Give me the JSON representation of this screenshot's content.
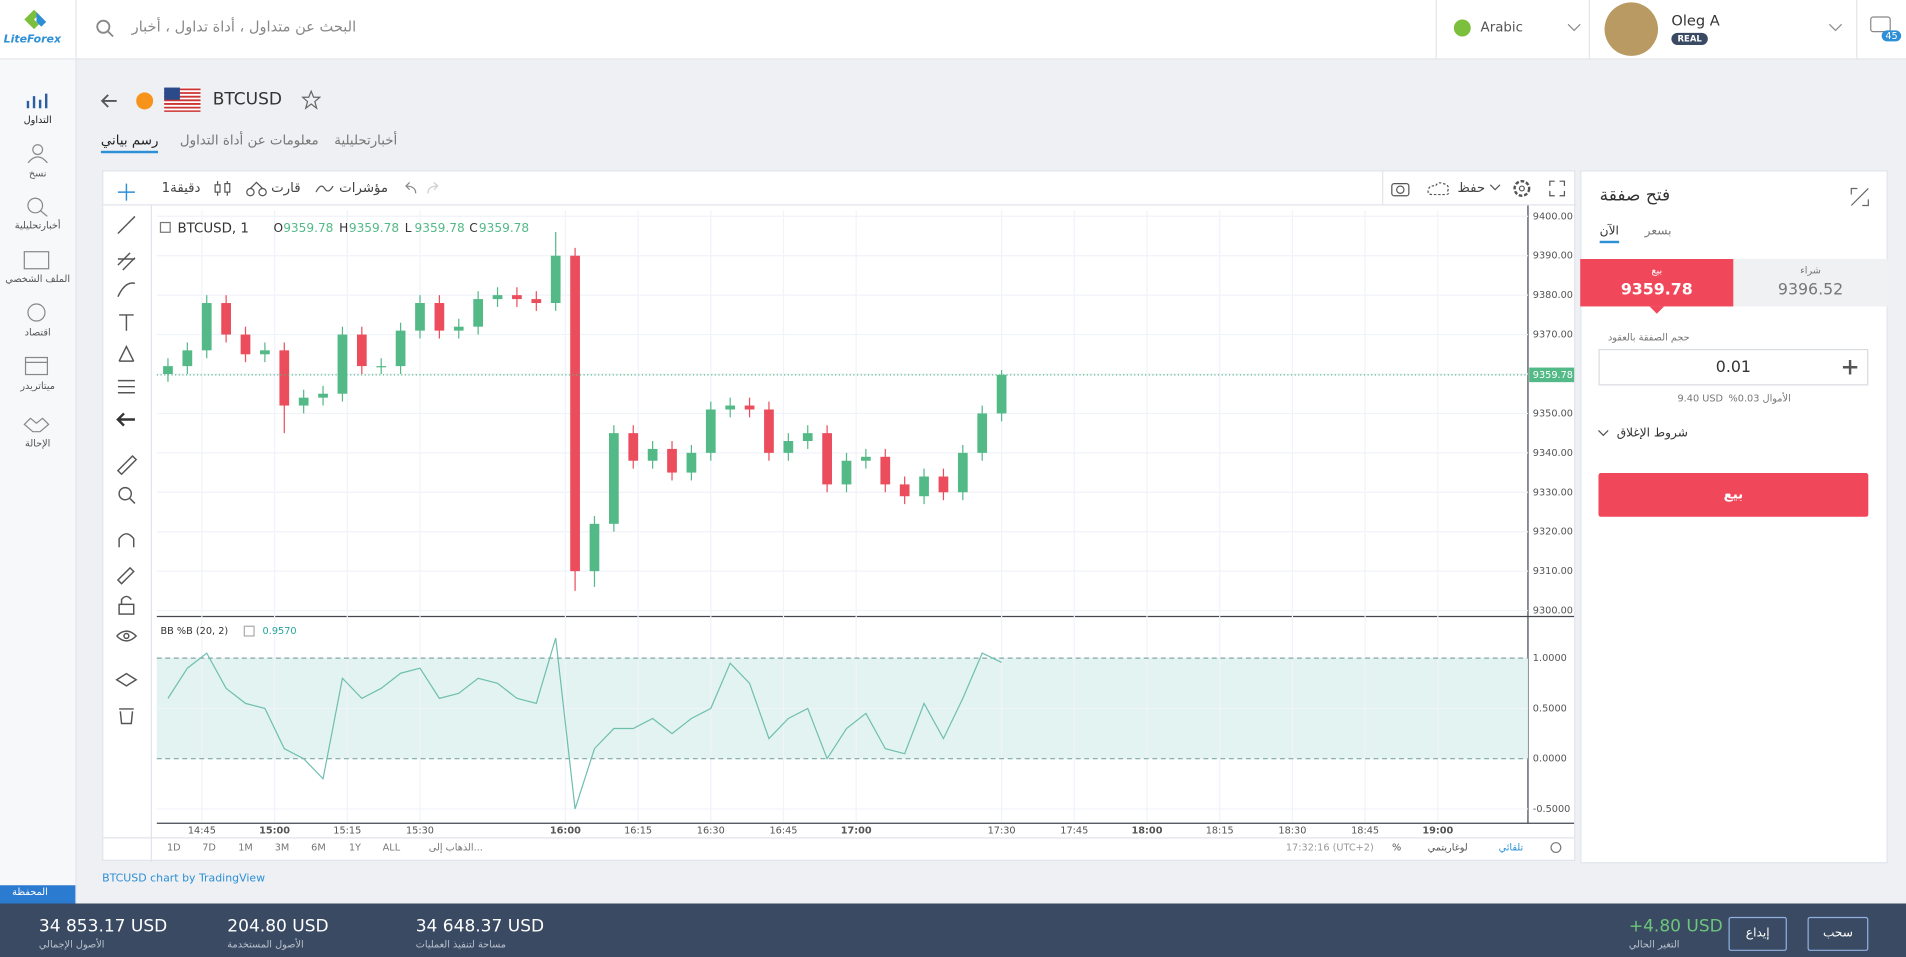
{
  "header": {
    "logo": "LiteForex",
    "search_placeholder": "البحث عن متداول ، أداة تداول ، أخبار",
    "language": "Arabic",
    "user_name": "Oleg A",
    "account_type": "REAL",
    "notifications": "45"
  },
  "sidebar": {
    "items": [
      "التداول",
      "نسخ",
      "أخبارتحليلية",
      "الملف الشخصي",
      "اقتصاد",
      "ميتاتريدر",
      "الإحالة"
    ],
    "wallet": "المحفظة"
  },
  "instrument": {
    "symbol": "BTCUSD",
    "tabs": [
      "رسم بياني",
      "معلومات عن أداة التداول",
      "أخبارتحليلية"
    ]
  },
  "chart_toolbar": {
    "interval": "دقيقة1",
    "chart": "قارت",
    "indicators": "مؤشرات",
    "save": "حفظ"
  },
  "chart_footer": {
    "ranges": [
      "1D",
      "7D",
      "1M",
      "3M",
      "6M",
      "1Y",
      "ALL",
      "...الذهاب إلى"
    ],
    "time": "17:32:16 (UTC+2)",
    "percent": "%",
    "log": "لوغاريتمي",
    "auto": "تلقائي"
  },
  "credit": "BTCUSD chart by TradingView",
  "chart_data": [
    {
      "type": "candlestick",
      "title": "BTCUSD, 1",
      "legend": [
        {
          "label": "O",
          "value": 9359.78
        },
        {
          "label": "H",
          "value": 9359.78
        },
        {
          "label": "L",
          "value": 9359.78
        },
        {
          "label": "C",
          "value": 9359.78
        }
      ],
      "x": [
        878,
        882,
        886,
        890,
        894,
        898,
        902,
        906,
        910,
        914,
        918,
        922,
        926,
        930,
        934,
        938,
        942,
        946,
        950,
        954,
        958,
        962,
        966,
        970,
        974,
        978,
        982,
        986,
        990,
        994,
        998,
        1002,
        1006,
        1010,
        1014,
        1018,
        1022,
        1026,
        1030,
        1034,
        1038,
        1042,
        1046,
        1050
      ],
      "open": [
        9360,
        9362,
        9366,
        9378,
        9370,
        9365,
        9366,
        9352,
        9354,
        9355,
        9370,
        9362,
        9362,
        9371,
        9378,
        9371,
        9372,
        9379,
        9380,
        9379,
        9378,
        9390,
        9310,
        9322,
        9345,
        9338,
        9341,
        9335,
        9340,
        9351,
        9352,
        9351,
        9340,
        9343,
        9345,
        9332,
        9338,
        9339,
        9332,
        9329,
        9334,
        9330,
        9340,
        9350
      ],
      "high": [
        9364,
        9368,
        9380,
        9380,
        9372,
        9368,
        9368,
        9356,
        9357,
        9372,
        9372,
        9364,
        9373,
        9380,
        9380,
        9374,
        9381,
        9382,
        9382,
        9381,
        9396,
        9392,
        9324,
        9347,
        9347,
        9343,
        9343,
        9342,
        9353,
        9354,
        9354,
        9353,
        9345,
        9347,
        9347,
        9340,
        9341,
        9341,
        9334,
        9336,
        9336,
        9342,
        9352,
        9361
      ],
      "low": [
        9358,
        9360,
        9364,
        9368,
        9363,
        9363,
        9345,
        9350,
        9352,
        9353,
        9360,
        9360,
        9360,
        9369,
        9369,
        9369,
        9370,
        9377,
        9377,
        9376,
        9376,
        9305,
        9306,
        9320,
        9336,
        9336,
        9333,
        9333,
        9338,
        9349,
        9349,
        9338,
        9338,
        9341,
        9330,
        9330,
        9336,
        9330,
        9327,
        9327,
        9328,
        9328,
        9338,
        9348
      ],
      "close": [
        9362,
        9366,
        9378,
        9370,
        9365,
        9366,
        9352,
        9354,
        9355,
        9370,
        9362,
        9362,
        9371,
        9378,
        9371,
        9372,
        9379,
        9380,
        9379,
        9378,
        9390,
        9310,
        9322,
        9345,
        9338,
        9341,
        9335,
        9340,
        9351,
        9352,
        9351,
        9340,
        9343,
        9345,
        9332,
        9338,
        9339,
        9332,
        9329,
        9334,
        9330,
        9340,
        9350,
        9359.78
      ],
      "up_color": "#53b987",
      "down_color": "#eb4d5c",
      "last_price": 9359.78,
      "xlim": [
        875.7,
        1158.6
      ],
      "xticks": [
        {
          "value": 885,
          "label": "14:45"
        },
        {
          "value": 900,
          "label": "15:00"
        },
        {
          "value": 915,
          "label": "15:15"
        },
        {
          "value": 930,
          "label": "15:30"
        },
        {
          "value": 960,
          "label": "16:00"
        },
        {
          "value": 975,
          "label": "16:15"
        },
        {
          "value": 990,
          "label": "16:30"
        },
        {
          "value": 1005,
          "label": "16:45"
        },
        {
          "value": 1020,
          "label": "17:00"
        },
        {
          "value": 1050,
          "label": "17:30"
        },
        {
          "value": 1065,
          "label": "17:45"
        },
        {
          "value": 1080,
          "label": "18:00"
        },
        {
          "value": 1095,
          "label": "18:15"
        },
        {
          "value": 1110,
          "label": "18:30"
        },
        {
          "value": 1125,
          "label": "18:45"
        },
        {
          "value": 1140,
          "label": "19:00"
        }
      ],
      "ylim": [
        9298.8,
        9401.5
      ],
      "yticks": [
        {
          "value": 9300,
          "label": "9300.00"
        },
        {
          "value": 9310,
          "label": "9310.00"
        },
        {
          "value": 9320,
          "label": "9320.00"
        },
        {
          "value": 9330,
          "label": "9330.00"
        },
        {
          "value": 9340,
          "label": "9340.00"
        },
        {
          "value": 9350,
          "label": "9350.00"
        },
        {
          "value": 9360,
          "label": "9360.00"
        },
        {
          "value": 9370,
          "label": "9370.00"
        },
        {
          "value": 9380,
          "label": "9380.00"
        },
        {
          "value": 9390,
          "label": "9390.00"
        },
        {
          "value": 9400,
          "label": "9400.00"
        }
      ],
      "grid": true
    },
    {
      "type": "line",
      "title": "BB %B (20, 2)",
      "value_label": {
        "value": 0.957,
        "label": "0.9570"
      },
      "color": "#6fbfb0",
      "x": [
        878,
        882,
        886,
        890,
        894,
        898,
        902,
        906,
        910,
        914,
        918,
        922,
        926,
        930,
        934,
        938,
        942,
        946,
        950,
        954,
        958,
        962,
        966,
        970,
        974,
        978,
        982,
        986,
        990,
        994,
        998,
        1002,
        1006,
        1010,
        1014,
        1018,
        1022,
        1026,
        1030,
        1034,
        1038,
        1042,
        1046,
        1050
      ],
      "values": [
        0.6,
        0.9,
        1.05,
        0.7,
        0.55,
        0.5,
        0.1,
        0.0,
        -0.2,
        0.8,
        0.6,
        0.7,
        0.85,
        0.9,
        0.6,
        0.65,
        0.8,
        0.75,
        0.6,
        0.55,
        1.2,
        -0.5,
        0.1,
        0.3,
        0.3,
        0.4,
        0.25,
        0.4,
        0.5,
        0.95,
        0.75,
        0.2,
        0.4,
        0.5,
        0.0,
        0.3,
        0.45,
        0.1,
        0.05,
        0.55,
        0.2,
        0.6,
        1.05,
        0.957
      ],
      "xlim": [
        875.7,
        1158.6
      ],
      "ylim": [
        -0.63,
        1.39
      ],
      "yticks": [
        {
          "value": 1,
          "label": "1.0000"
        },
        {
          "value": 0.5,
          "label": "0.5000"
        },
        {
          "value": 0,
          "label": "0.0000"
        },
        {
          "value": -0.5,
          "label": "-0.5000"
        }
      ],
      "grid": true
    }
  ],
  "trade_panel": {
    "title": "فتح صفقة",
    "tabs": [
      "الآن",
      "بسعر"
    ],
    "sell_label": "بيع",
    "sell_price": "9359.78",
    "buy_label": "شراء",
    "buy_price": "9396.52",
    "volume_label": "حجم الصفقة بالعقود",
    "volume": "0.01",
    "margin_label": "الأموال 0.03%",
    "margin": "9.40 USD",
    "close_conditions": "شروط الإغلاق",
    "sell_button": "بيع"
  },
  "footer": {
    "stats": [
      {
        "value": "34 853.17 USD",
        "label": "الأصول الإجمالي"
      },
      {
        "value": "204.80 USD",
        "label": "الأصول المستخدمة"
      },
      {
        "value": "34 648.37 USD",
        "label": "مساحة لتنفيذ العمليات"
      }
    ],
    "change": "+4.80 USD",
    "change_label": "التغير الحالي",
    "deposit": "إيداع",
    "withdraw": "سحب"
  }
}
